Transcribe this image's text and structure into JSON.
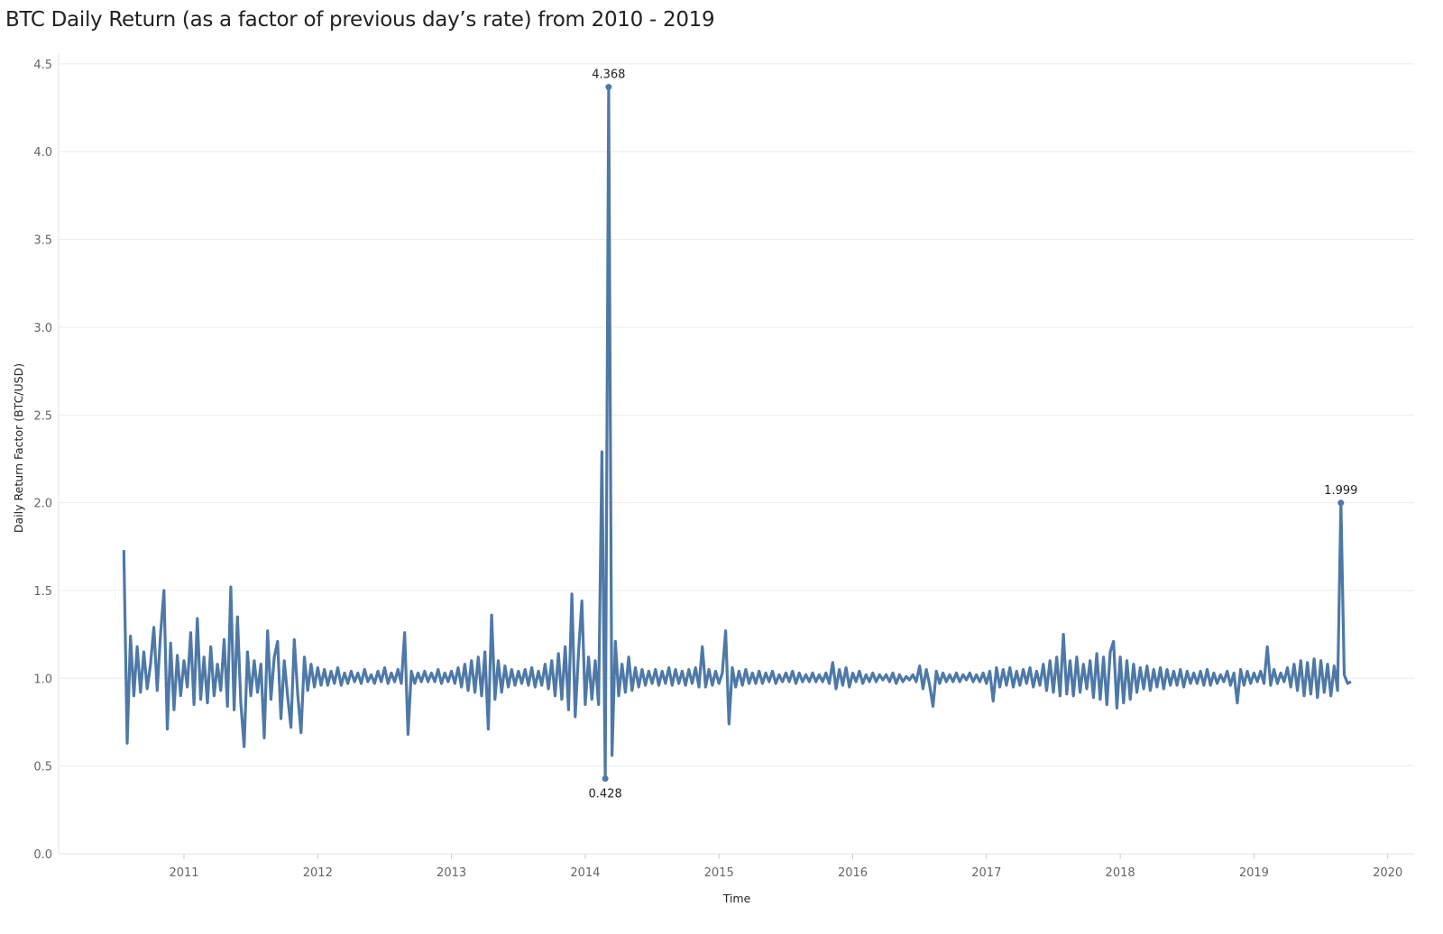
{
  "chart_data": {
    "type": "line",
    "title": "BTC Daily Return (as a factor of previous day’s rate) from 2010 - 2019",
    "xlabel": "Time",
    "ylabel": "Daily Return Factor (BTC/USD)",
    "ylim": [
      0,
      4.5
    ],
    "xlim": [
      2010.1,
      2020.2
    ],
    "yticks": [
      "0.0",
      "0.5",
      "1.0",
      "1.5",
      "2.0",
      "2.5",
      "3.0",
      "3.5",
      "4.0",
      "4.5"
    ],
    "xticks": [
      "2011",
      "2012",
      "2013",
      "2014",
      "2015",
      "2016",
      "2017",
      "2018",
      "2019",
      "2020"
    ],
    "grid": true,
    "color": "#4e79a7",
    "series": [
      {
        "name": "Daily Return Factor",
        "x_start_year": 2010.55,
        "x_step_years": 0.025,
        "values": [
          1.73,
          0.63,
          1.24,
          0.9,
          1.18,
          0.92,
          1.15,
          0.94,
          1.08,
          1.29,
          0.93,
          1.25,
          1.5,
          0.71,
          1.2,
          0.82,
          1.13,
          0.9,
          1.1,
          0.95,
          1.26,
          0.85,
          1.34,
          0.88,
          1.12,
          0.86,
          1.18,
          0.9,
          1.08,
          0.93,
          1.22,
          0.84,
          1.52,
          0.82,
          1.35,
          0.86,
          0.61,
          1.15,
          0.9,
          1.1,
          0.92,
          1.08,
          0.66,
          1.27,
          0.88,
          1.12,
          1.21,
          0.77,
          1.1,
          0.9,
          0.72,
          1.22,
          0.91,
          0.69,
          1.12,
          0.93,
          1.08,
          0.95,
          1.06,
          0.96,
          1.05,
          0.96,
          1.04,
          0.97,
          1.06,
          0.96,
          1.03,
          0.97,
          1.04,
          0.98,
          1.03,
          0.97,
          1.05,
          0.98,
          1.02,
          0.97,
          1.04,
          0.98,
          1.06,
          0.97,
          1.03,
          0.98,
          1.05,
          0.97,
          1.26,
          0.68,
          1.04,
          0.97,
          1.03,
          0.98,
          1.04,
          0.98,
          1.03,
          0.98,
          1.05,
          0.97,
          1.03,
          0.98,
          1.04,
          0.97,
          1.06,
          0.95,
          1.08,
          0.93,
          1.1,
          0.92,
          1.12,
          0.9,
          1.15,
          0.71,
          1.36,
          0.88,
          1.1,
          0.92,
          1.07,
          0.95,
          1.05,
          0.96,
          1.04,
          0.97,
          1.05,
          0.96,
          1.06,
          0.95,
          1.04,
          0.96,
          1.08,
          0.94,
          1.1,
          0.9,
          1.14,
          0.88,
          1.18,
          0.82,
          1.48,
          0.78,
          1.15,
          1.44,
          0.85,
          1.12,
          0.88,
          1.1,
          0.85,
          2.29,
          0.428,
          4.368,
          0.56,
          1.21,
          0.9,
          1.08,
          0.92,
          1.12,
          0.93,
          1.06,
          0.95,
          1.05,
          0.96,
          1.04,
          0.97,
          1.05,
          0.96,
          1.04,
          0.97,
          1.06,
          0.96,
          1.05,
          0.97,
          1.04,
          0.96,
          1.05,
          0.97,
          1.06,
          0.95,
          1.18,
          0.95,
          1.05,
          0.96,
          1.04,
          0.97,
          1.03,
          1.27,
          0.74,
          1.06,
          0.95,
          1.04,
          0.96,
          1.05,
          0.97,
          1.03,
          0.97,
          1.04,
          0.97,
          1.03,
          0.98,
          1.04,
          0.97,
          1.02,
          0.98,
          1.03,
          0.98,
          1.04,
          0.97,
          1.03,
          0.98,
          1.02,
          0.98,
          1.03,
          0.98,
          1.02,
          0.98,
          1.03,
          0.97,
          1.09,
          0.94,
          1.05,
          0.96,
          1.06,
          0.95,
          1.03,
          0.98,
          1.04,
          0.97,
          1.02,
          0.98,
          1.03,
          0.98,
          1.02,
          0.99,
          1.02,
          0.98,
          1.03,
          0.97,
          1.02,
          0.98,
          1.01,
          0.99,
          1.02,
          0.98,
          1.07,
          0.94,
          1.05,
          0.96,
          0.84,
          1.04,
          0.97,
          1.03,
          0.98,
          1.02,
          0.98,
          1.03,
          0.98,
          1.02,
          0.99,
          1.03,
          0.98,
          1.02,
          0.98,
          1.03,
          0.97,
          1.04,
          0.87,
          1.06,
          0.95,
          1.05,
          0.96,
          1.06,
          0.95,
          1.04,
          0.96,
          1.05,
          0.97,
          1.06,
          0.95,
          1.04,
          0.96,
          1.08,
          0.93,
          1.1,
          0.92,
          1.12,
          0.9,
          1.25,
          0.91,
          1.1,
          0.9,
          1.12,
          0.92,
          1.08,
          0.94,
          1.1,
          0.89,
          1.14,
          0.88,
          1.12,
          0.85,
          1.15,
          1.21,
          0.83,
          1.12,
          0.86,
          1.1,
          0.88,
          1.08,
          0.92,
          1.06,
          0.94,
          1.07,
          0.93,
          1.05,
          0.95,
          1.06,
          0.94,
          1.05,
          0.96,
          1.04,
          0.96,
          1.05,
          0.95,
          1.04,
          0.97,
          1.03,
          0.97,
          1.04,
          0.96,
          1.05,
          0.96,
          1.03,
          0.97,
          1.02,
          0.98,
          1.04,
          0.96,
          1.03,
          0.86,
          1.05,
          0.96,
          1.04,
          0.97,
          1.03,
          0.98,
          1.04,
          0.97,
          1.18,
          0.96,
          1.05,
          0.97,
          1.03,
          0.98,
          1.06,
          0.95,
          1.08,
          0.93,
          1.1,
          0.9,
          1.09,
          0.91,
          1.11,
          0.89,
          1.1,
          0.92,
          1.08,
          0.9,
          1.07,
          0.93,
          1.999,
          1.02,
          0.97,
          0.98
        ]
      }
    ],
    "annotations": [
      {
        "index": 145,
        "label": "4.368",
        "position": "above"
      },
      {
        "index": 144,
        "label": "0.428",
        "position": "below"
      },
      {
        "index": 364,
        "label": "1.999",
        "position": "above"
      }
    ]
  }
}
